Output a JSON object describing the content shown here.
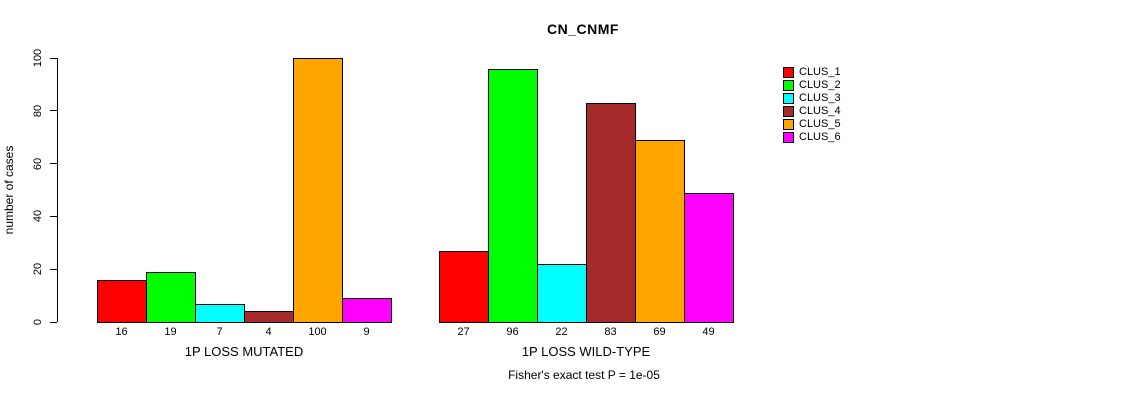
{
  "chart_data": {
    "type": "bar",
    "title": "CN_CNMF",
    "ylabel": "number of cases",
    "footer": "Fisher's exact test P = 1e-05",
    "categories": [
      "1P LOSS MUTATED",
      "1P LOSS WILD-TYPE"
    ],
    "series": [
      {
        "name": "CLUS_1",
        "color": "#FF0000",
        "values": [
          16,
          27
        ]
      },
      {
        "name": "CLUS_2",
        "color": "#00FF00",
        "values": [
          19,
          96
        ]
      },
      {
        "name": "CLUS_3",
        "color": "#00FFFF",
        "values": [
          7,
          22
        ]
      },
      {
        "name": "CLUS_4",
        "color": "#A52A2A",
        "values": [
          4,
          83
        ]
      },
      {
        "name": "CLUS_5",
        "color": "#FFA500",
        "values": [
          100,
          69
        ]
      },
      {
        "name": "CLUS_6",
        "color": "#FF00FF",
        "values": [
          9,
          49
        ]
      }
    ],
    "yticks": [
      0,
      20,
      40,
      60,
      80,
      100
    ],
    "ylim": [
      0,
      100
    ],
    "grid": false,
    "bar_value_labels": true,
    "legend_position": "right",
    "axis_color": "#000000",
    "background_color": "#FFFFFF"
  }
}
